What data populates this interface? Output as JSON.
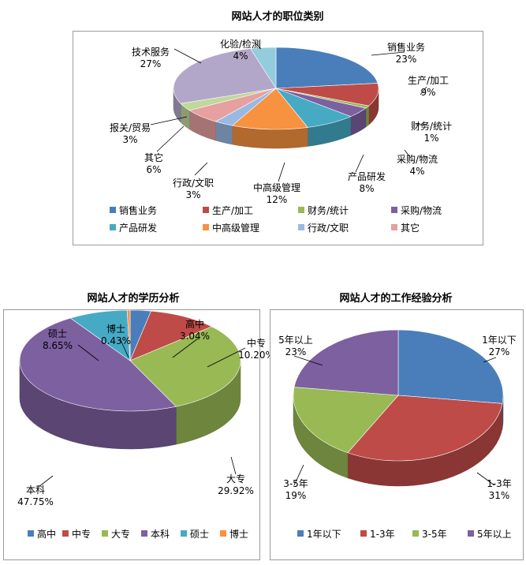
{
  "chart_data": [
    {
      "type": "pie",
      "title": "网站人才的职位类别",
      "categories": [
        "销售业务",
        "生产/加工",
        "财务/统计",
        "采购/物流",
        "产品研发",
        "中高级管理",
        "行政/文职",
        "其它",
        "报关/贸易",
        "技术服务",
        "化验/检测"
      ],
      "values": [
        23,
        9,
        1,
        4,
        8,
        12,
        3,
        6,
        3,
        27,
        4
      ],
      "value_labels": [
        "23%",
        "9%",
        "1%",
        "4%",
        "8%",
        "12%",
        "3%",
        "6%",
        "3%",
        "27%",
        "4%"
      ],
      "colors": [
        "#4a7ebb",
        "#be4b48",
        "#98b954",
        "#7d60a0",
        "#46aac5",
        "#f69240",
        "#98b9e3",
        "#e6a0a0",
        "#bfd89b",
        "#b3a7c9",
        "#93cddd"
      ],
      "legend": {
        "placement": "bottom",
        "entries": [
          "销售业务",
          "生产/加工",
          "财务/统计",
          "采购/物流",
          "产品研发",
          "中高级管理",
          "行政/文职",
          "其它"
        ]
      }
    },
    {
      "type": "pie",
      "title": "网站人才的学历分析",
      "categories": [
        "高中",
        "中专",
        "大专",
        "本科",
        "硕士",
        "博士"
      ],
      "values": [
        3.04,
        10.2,
        29.92,
        47.75,
        8.65,
        0.43
      ],
      "value_labels": [
        "3.04%",
        "10.20%",
        "29.92%",
        "47.75%",
        "8.65%",
        "0.43%"
      ],
      "colors": [
        "#4a7ebb",
        "#be4b48",
        "#98b954",
        "#7d60a0",
        "#46aac5",
        "#f69240"
      ],
      "legend": {
        "placement": "bottom",
        "entries": [
          "高中",
          "中专",
          "大专",
          "本科",
          "硕士",
          "博士"
        ]
      }
    },
    {
      "type": "pie",
      "title": "网站人才的工作经验分析",
      "categories": [
        "1年以下",
        "1-3年",
        "3-5年",
        "5年以上"
      ],
      "values": [
        27,
        31,
        19,
        23
      ],
      "value_labels": [
        "27%",
        "31%",
        "19%",
        "23%"
      ],
      "colors": [
        "#4a7ebb",
        "#be4b48",
        "#98b954",
        "#7d60a0"
      ],
      "legend": {
        "placement": "bottom",
        "entries": [
          "1年以下",
          "1-3年",
          "3-5年",
          "5年以上"
        ]
      }
    }
  ]
}
